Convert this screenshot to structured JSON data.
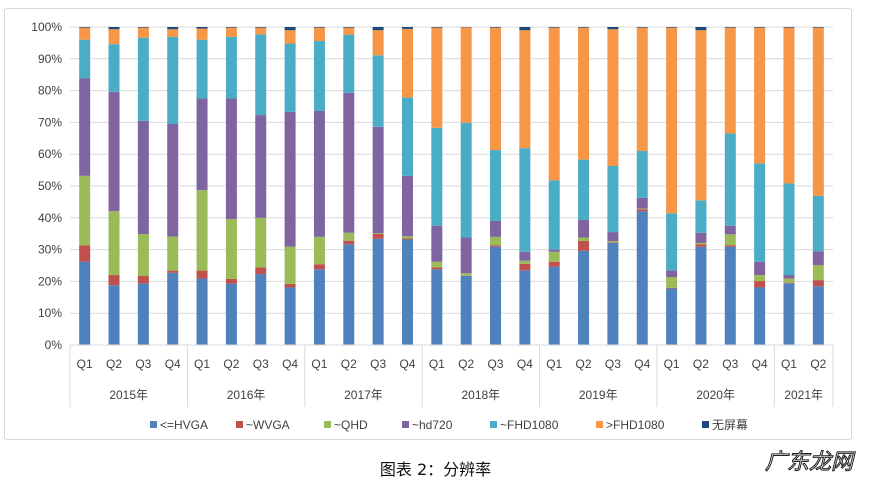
{
  "chart_data": {
    "type": "bar",
    "stacked": true,
    "percent_stacked": true,
    "title": "",
    "xlabel": "",
    "ylabel": "",
    "ylim": [
      0,
      100
    ],
    "yticks": [
      "0%",
      "10%",
      "20%",
      "30%",
      "40%",
      "50%",
      "60%",
      "70%",
      "80%",
      "90%",
      "100%"
    ],
    "grid": true,
    "legend_position": "bottom",
    "years": [
      {
        "label": "2015年",
        "count": 4
      },
      {
        "label": "2016年",
        "count": 4
      },
      {
        "label": "2017年",
        "count": 4
      },
      {
        "label": "2018年",
        "count": 4
      },
      {
        "label": "2019年",
        "count": 4
      },
      {
        "label": "2020年",
        "count": 4
      },
      {
        "label": "2021年",
        "count": 2
      }
    ],
    "categories": [
      "Q1",
      "Q2",
      "Q3",
      "Q4",
      "Q1",
      "Q2",
      "Q3",
      "Q4",
      "Q1",
      "Q2",
      "Q3",
      "Q4",
      "Q1",
      "Q2",
      "Q3",
      "Q4",
      "Q1",
      "Q2",
      "Q3",
      "Q4",
      "Q1",
      "Q2",
      "Q3",
      "Q4",
      "Q1",
      "Q2"
    ],
    "series": [
      {
        "name": "<=HVGA",
        "color": "#4f81bd",
        "values": [
          26.2,
          18.8,
          19.3,
          22.7,
          20.9,
          19.3,
          22.3,
          18.1,
          23.8,
          31.7,
          33.4,
          33.2,
          23.8,
          21.7,
          30.9,
          23.5,
          24.6,
          29.6,
          32.1,
          42.1,
          17.8,
          30.9,
          30.9,
          18.1,
          19.4,
          18.5
        ]
      },
      {
        "name": "~WVGA",
        "color": "#c0504d",
        "values": [
          5.1,
          3.2,
          2.4,
          0.7,
          2.5,
          1.5,
          2.1,
          1.1,
          1.6,
          1.1,
          1.5,
          0.3,
          0.6,
          0.1,
          0.4,
          2.0,
          1.6,
          3.1,
          0.2,
          0.6,
          0.2,
          0.8,
          0.5,
          2.0,
          0.2,
          1.9
        ]
      },
      {
        "name": "~QHD",
        "color": "#9bbb59",
        "values": [
          21.9,
          20.1,
          13.2,
          10.7,
          25.3,
          18.8,
          15.6,
          11.7,
          8.6,
          2.5,
          0.3,
          0.7,
          1.8,
          0.8,
          2.7,
          1.0,
          3.1,
          1.1,
          0.4,
          0.2,
          3.3,
          0.4,
          3.4,
          1.9,
          1.3,
          4.7
        ]
      },
      {
        "name": "~hd720",
        "color": "#8064a2",
        "values": [
          30.6,
          37.5,
          35.6,
          35.4,
          28.8,
          37.9,
          32.3,
          42.4,
          39.6,
          44.0,
          33.4,
          19.0,
          11.3,
          11.2,
          5.0,
          2.8,
          0.7,
          5.5,
          2.8,
          3.4,
          2.1,
          3.2,
          2.7,
          4.2,
          1.1,
          4.4
        ]
      },
      {
        "name": "~FHD1080",
        "color": "#4bacc6",
        "values": [
          12.2,
          15.0,
          26.1,
          27.4,
          18.5,
          19.4,
          25.4,
          21.5,
          22.0,
          18.3,
          22.5,
          24.6,
          30.8,
          36.1,
          22.3,
          32.6,
          21.8,
          19.0,
          20.8,
          14.7,
          18.0,
          10.2,
          29.0,
          30.9,
          28.8,
          17.4
        ]
      },
      {
        "name": ">FHD1080",
        "color": "#f79646",
        "values": [
          3.8,
          4.7,
          3.2,
          2.4,
          3.5,
          2.9,
          2.1,
          4.2,
          4.2,
          2.2,
          7.9,
          21.6,
          31.5,
          30.0,
          38.5,
          37.1,
          48.0,
          41.5,
          43.0,
          38.8,
          58.4,
          53.5,
          33.3,
          42.7,
          49.0,
          52.9
        ]
      },
      {
        "name": "无屏幕",
        "color": "#1f497d",
        "values": [
          0.2,
          0.7,
          0.2,
          0.7,
          0.5,
          0.2,
          0.2,
          1.0,
          0.2,
          0.2,
          1.0,
          0.6,
          0.2,
          0.1,
          0.2,
          1.0,
          0.2,
          0.2,
          0.7,
          0.2,
          0.2,
          1.0,
          0.2,
          0.2,
          0.2,
          0.2
        ]
      }
    ]
  },
  "caption": "图表 2：分辨率",
  "watermark": "广东龙网"
}
